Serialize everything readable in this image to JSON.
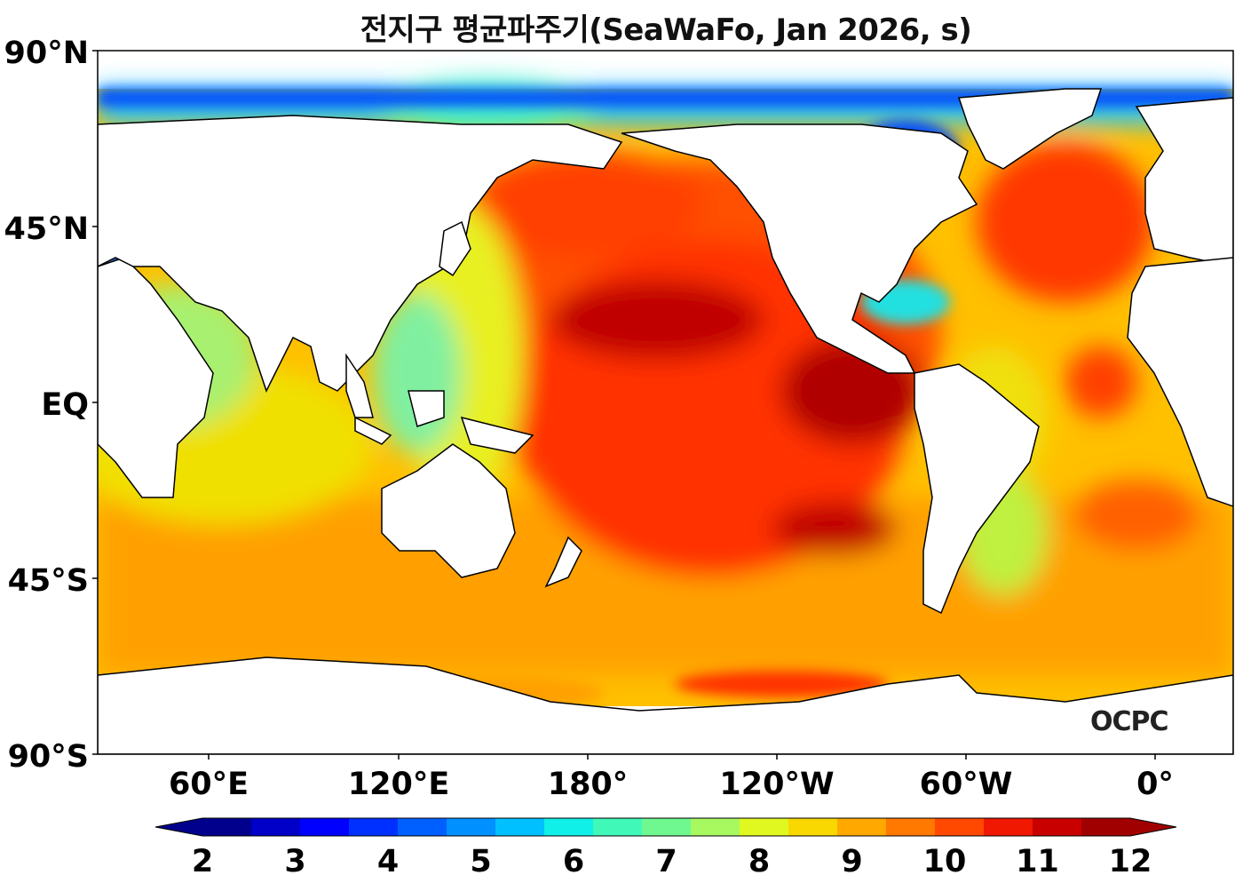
{
  "title": "전지구 평균파주기(SeaWaFo, Jan 2026, s)",
  "lat_ticks": [
    "90°N",
    "45°N",
    "EQ",
    "45°S",
    "90°S"
  ],
  "lon_ticks": [
    "60°E",
    "120°E",
    "180°",
    "120°W",
    "60°W",
    "0°"
  ],
  "colorbar": {
    "ticks": [
      "2",
      "3",
      "4",
      "5",
      "6",
      "7",
      "8",
      "9",
      "10",
      "11",
      "12"
    ],
    "colors": [
      "#00008c",
      "#0000c8",
      "#0000ff",
      "#0030ff",
      "#0060ff",
      "#0090ff",
      "#00c0ff",
      "#10f0e8",
      "#40f8b8",
      "#70f890",
      "#a8f860",
      "#e0f820",
      "#f8d800",
      "#ffa800",
      "#ff7800",
      "#ff4800",
      "#f01800",
      "#c80000",
      "#a00000"
    ]
  },
  "logo": "OCPC",
  "colors": {
    "land": "#ffffff",
    "coast": "#000000",
    "ocean_low": "#0040ff",
    "ocean_mid": "#e8f820",
    "ocean_high": "#d00000"
  }
}
